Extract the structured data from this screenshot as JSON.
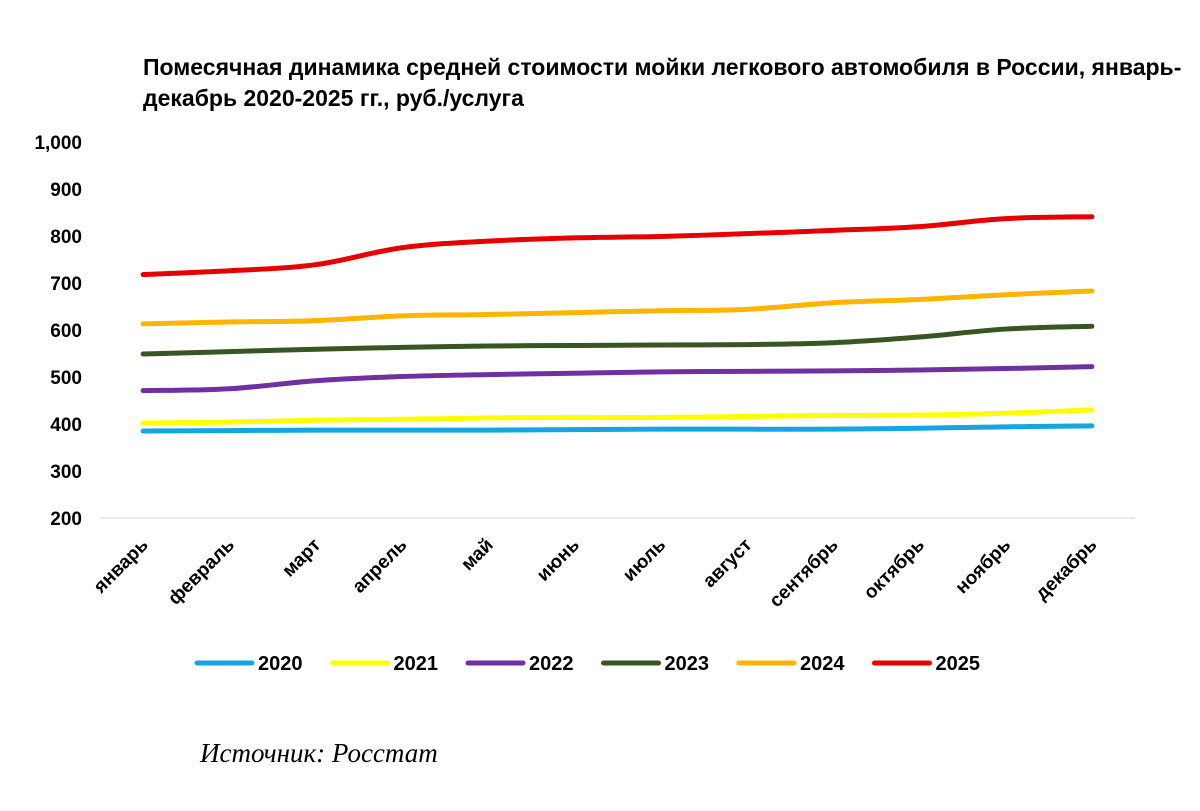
{
  "chart_data": {
    "type": "line",
    "title": "Помесячная динамика средней стоимости мойки легкового автомобиля в России, январь-декабрь 2020-2025 гг., руб./услуга",
    "xlabel": "",
    "ylabel": "",
    "ylim": [
      200,
      1000
    ],
    "yticks": [
      200,
      300,
      400,
      500,
      600,
      700,
      800,
      900,
      1000
    ],
    "ytick_labels": [
      "200",
      "300",
      "400",
      "500",
      "600",
      "700",
      "800",
      "900",
      "1,000"
    ],
    "grid": false,
    "legend_position": "bottom",
    "categories": [
      "январь",
      "февраль",
      "март",
      "апрель",
      "май",
      "июнь",
      "июль",
      "август",
      "сентябрь",
      "октябрь",
      "ноябрь",
      "декабрь"
    ],
    "series": [
      {
        "name": "2020",
        "color": "#14A6E0",
        "values": [
          385,
          386,
          387,
          387,
          387,
          388,
          389,
          389,
          389,
          391,
          394,
          396
        ]
      },
      {
        "name": "2021",
        "color": "#FFFF00",
        "values": [
          402,
          404,
          408,
          410,
          413,
          414,
          414,
          416,
          418,
          419,
          423,
          430
        ]
      },
      {
        "name": "2022",
        "color": "#7030A0",
        "values": [
          471,
          475,
          492,
          501,
          505,
          508,
          511,
          512,
          513,
          515,
          518,
          522
        ]
      },
      {
        "name": "2023",
        "color": "#375623",
        "values": [
          549,
          554,
          559,
          563,
          566,
          567,
          568,
          569,
          573,
          585,
          602,
          608
        ]
      },
      {
        "name": "2024",
        "color": "#FFB400",
        "values": [
          613,
          617,
          620,
          630,
          633,
          637,
          641,
          644,
          658,
          665,
          675,
          683
        ]
      },
      {
        "name": "2025",
        "color": "#E60000",
        "values": [
          718,
          726,
          739,
          775,
          789,
          796,
          799,
          805,
          812,
          820,
          837,
          841
        ]
      }
    ]
  },
  "source": "Источник: Росстат"
}
